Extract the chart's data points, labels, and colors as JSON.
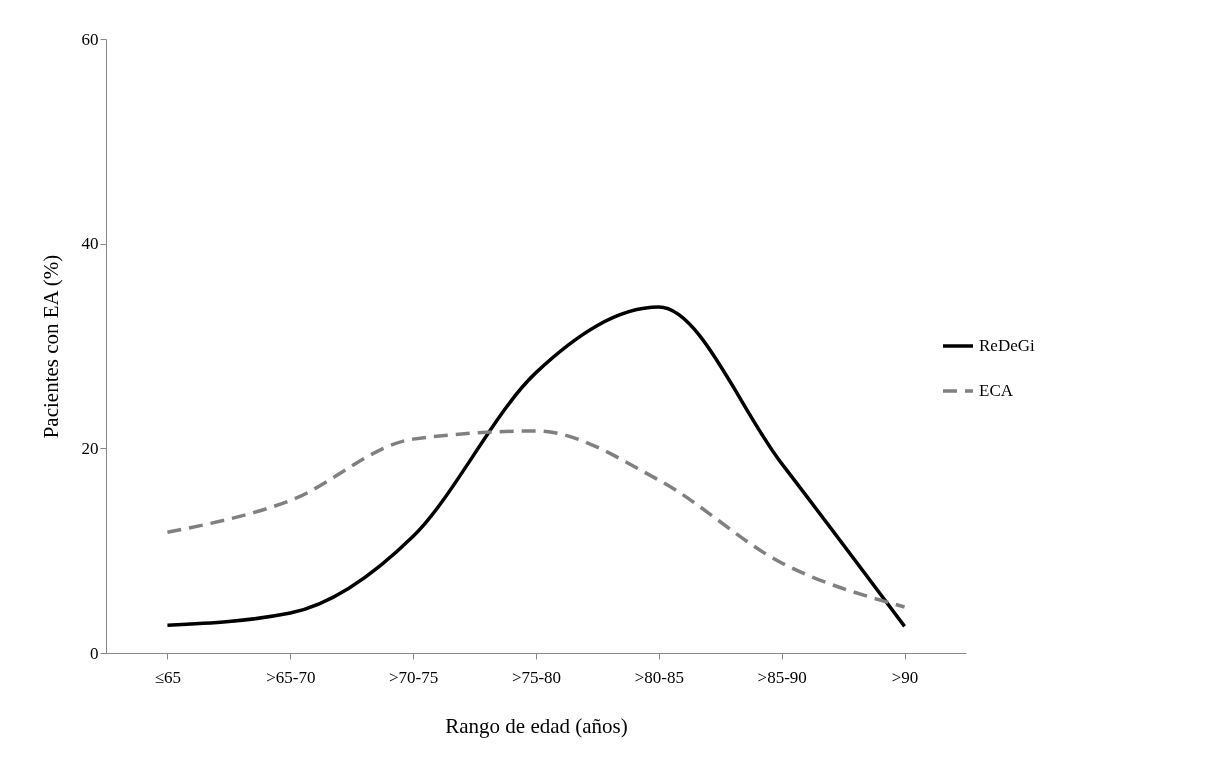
{
  "chart_data": {
    "type": "line",
    "xlabel": "Rango de edad (años)",
    "ylabel": "Pacientes con EA (%)",
    "categories": [
      "≤65",
      ">65-70",
      ">70-75",
      ">75-80",
      ">80-85",
      ">85-90",
      ">90"
    ],
    "series": [
      {
        "name": "ReDeGi",
        "color": "#000000",
        "line_style": "solid",
        "values": [
          2.7,
          3.9,
          11.4,
          27.4,
          33.8,
          18.5,
          2.6
        ]
      },
      {
        "name": "ECA",
        "color": "#808080",
        "line_style": "dashed",
        "values": [
          11.8,
          14.9,
          20.9,
          21.7,
          16.9,
          8.8,
          4.5
        ]
      }
    ],
    "ylim": [
      0,
      60
    ],
    "yticks": [
      0,
      20,
      40,
      60
    ],
    "grid": false,
    "legend": "right",
    "marker": "none"
  }
}
